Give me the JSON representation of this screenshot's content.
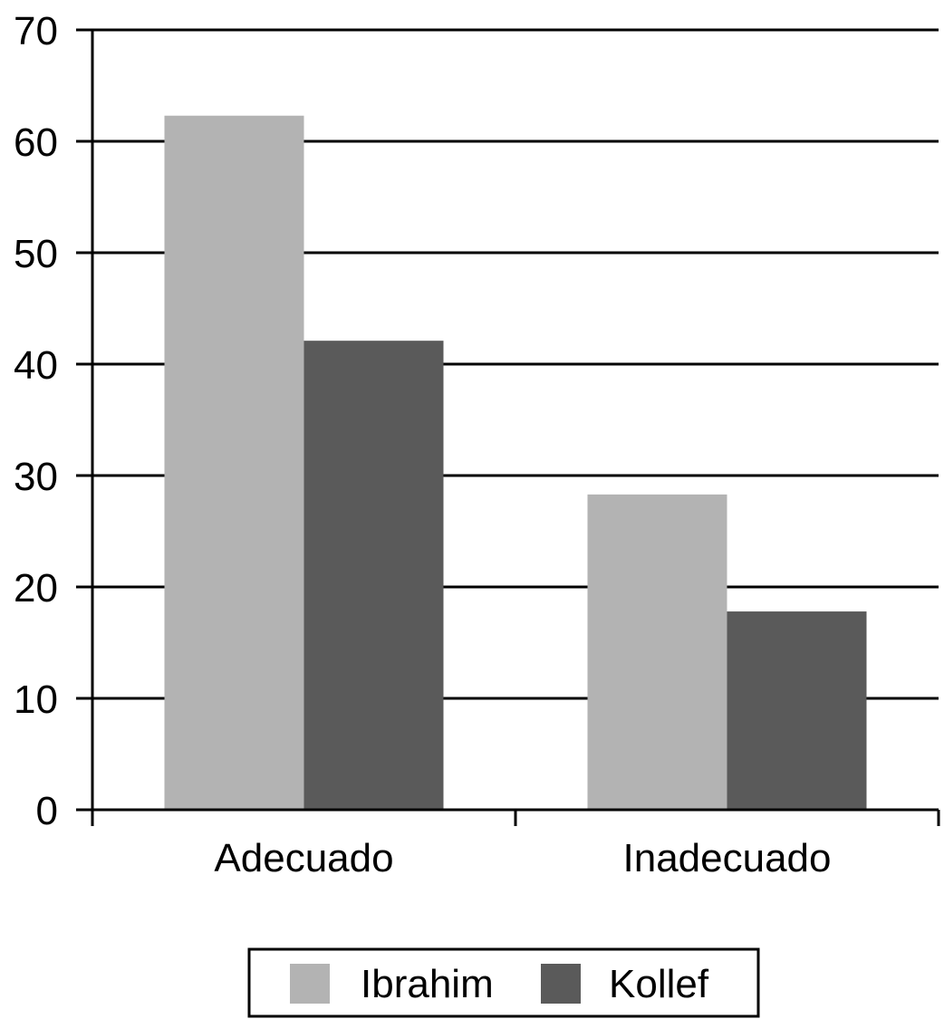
{
  "chart_data": {
    "type": "bar",
    "title": "",
    "xlabel": "",
    "ylabel": "",
    "categories": [
      "Adecuado",
      "Inadecuado"
    ],
    "series": [
      {
        "name": "Ibrahim",
        "values": [
          62.3,
          28.3
        ],
        "color": "#b3b3b3"
      },
      {
        "name": "Kollef",
        "values": [
          42.1,
          17.8
        ],
        "color": "#5a5a5a"
      }
    ],
    "ylim": [
      0,
      70
    ],
    "yticks": [
      "0",
      "10",
      "20",
      "30",
      "40",
      "50",
      "60",
      "70"
    ],
    "grid": true,
    "legend": "bottom-center"
  }
}
